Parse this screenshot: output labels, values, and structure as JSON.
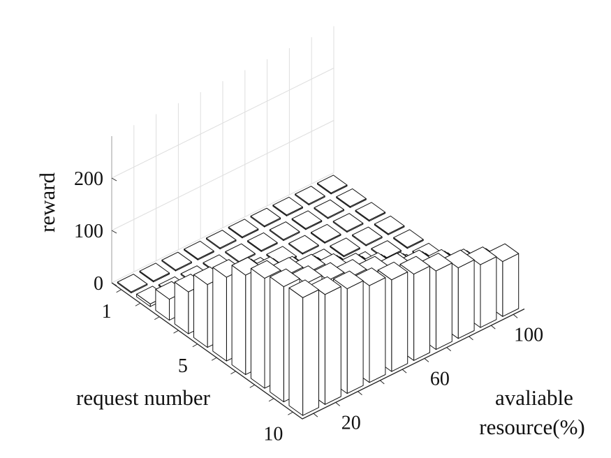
{
  "chart_data": {
    "type": "bar3d",
    "zlabel": "reward",
    "xlabel": "request number",
    "ylabel_lines": [
      "avaliable",
      "resource(%)"
    ],
    "x_ticks": [
      1,
      5,
      10
    ],
    "y_ticks": [
      20,
      60,
      100
    ],
    "z_ticks": [
      0,
      100,
      200
    ],
    "zlim": [
      0,
      280
    ],
    "request_number": [
      1,
      2,
      3,
      4,
      5,
      6,
      7,
      8,
      9,
      10
    ],
    "available_resource_pct": [
      10,
      20,
      30,
      40,
      50,
      60,
      70,
      80,
      90,
      100
    ],
    "reward": [
      [
        2,
        2,
        2,
        2,
        2,
        2,
        2,
        2,
        2,
        2
      ],
      [
        5,
        2,
        2,
        2,
        2,
        2,
        2,
        2,
        2,
        2
      ],
      [
        40,
        20,
        2,
        2,
        2,
        2,
        2,
        2,
        2,
        2
      ],
      [
        80,
        60,
        35,
        15,
        2,
        2,
        2,
        2,
        2,
        2
      ],
      [
        120,
        100,
        75,
        55,
        35,
        15,
        2,
        2,
        2,
        2
      ],
      [
        160,
        140,
        120,
        100,
        80,
        60,
        40,
        20,
        2,
        2
      ],
      [
        190,
        170,
        150,
        130,
        110,
        90,
        70,
        50,
        30,
        10
      ],
      [
        210,
        195,
        180,
        160,
        140,
        120,
        100,
        80,
        60,
        40
      ],
      [
        220,
        205,
        190,
        175,
        160,
        145,
        130,
        110,
        90,
        70
      ],
      [
        225,
        210,
        200,
        185,
        175,
        165,
        150,
        135,
        120,
        105
      ]
    ]
  }
}
